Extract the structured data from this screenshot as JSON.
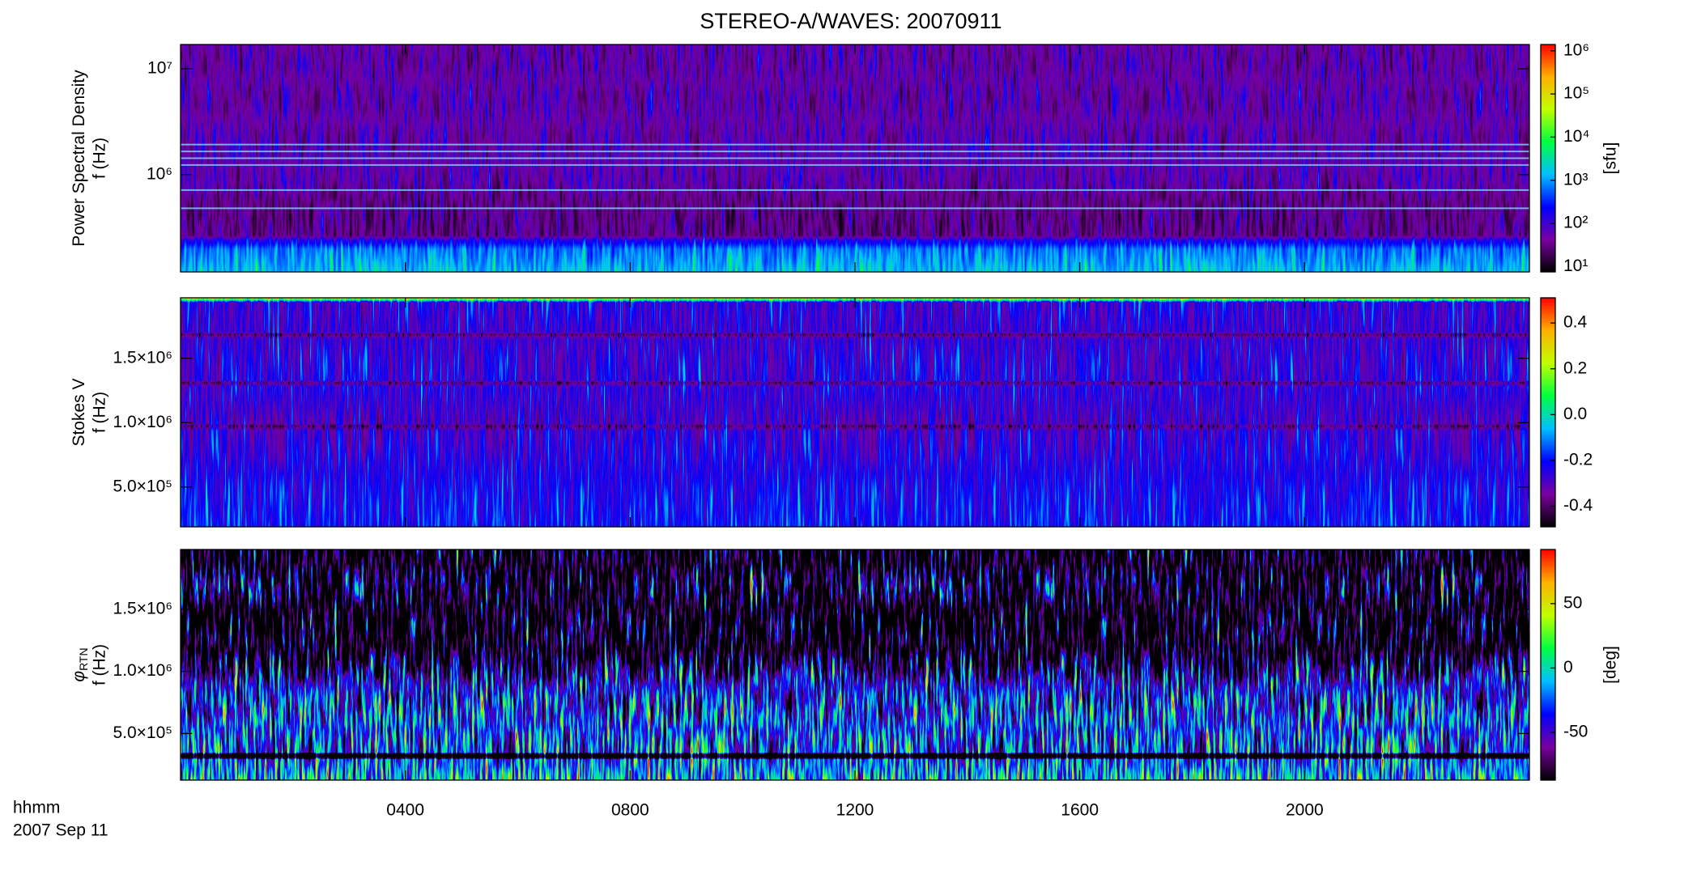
{
  "figure": {
    "title": "STEREO-A/WAVES: 20070911",
    "time_label": "hhmm",
    "date_label": "2007 Sep 11"
  },
  "chart_data": [
    {
      "type": "heatmap",
      "ylabel": "Power Spectral Density",
      "ylabel2": "f (Hz)",
      "ylog": true,
      "xlim": [
        0,
        24
      ],
      "xticks": [
        4,
        8,
        12,
        16,
        20
      ],
      "ylim": [
        120000,
        17000000
      ],
      "yticks": [
        {
          "value": 1000000,
          "label": "10⁶"
        },
        {
          "value": 10000000,
          "label": "10⁷"
        }
      ],
      "colormap": [
        "#000000",
        "#7a00a0",
        "#0000ff",
        "#00c0ff",
        "#00ff40",
        "#c0ff00",
        "#ffb000",
        "#ff0000"
      ],
      "colorbar": {
        "log": true,
        "clim": [
          7.5,
          1400000
        ],
        "label": "[sfu]",
        "ticks": [
          {
            "value": 10,
            "label": "10¹"
          },
          {
            "value": 100,
            "label": "10²"
          },
          {
            "value": 1000,
            "label": "10³"
          },
          {
            "value": 10000,
            "label": "10⁴"
          },
          {
            "value": 100000,
            "label": "10⁵"
          },
          {
            "value": 1000000,
            "label": "10⁶"
          }
        ]
      }
    },
    {
      "type": "heatmap",
      "ylabel": "Stokes V",
      "ylabel2": "f (Hz)",
      "ylog": false,
      "xlim": [
        0,
        24
      ],
      "xticks": [
        4,
        8,
        12,
        16,
        20
      ],
      "ylim": [
        190000,
        1970000
      ],
      "yticks": [
        {
          "value": 500000,
          "label": "5.0×10⁵"
        },
        {
          "value": 1000000,
          "label": "1.0×10⁶"
        },
        {
          "value": 1500000,
          "label": "1.5×10⁶"
        }
      ],
      "colormap": [
        "#000000",
        "#7a00a0",
        "#0000ff",
        "#00c0ff",
        "#00ff40",
        "#c0ff00",
        "#ffb000",
        "#ff0000"
      ],
      "colorbar": {
        "log": false,
        "clim": [
          -0.49,
          0.51
        ],
        "ticks": [
          -0.4,
          -0.2,
          {
            "value": 0,
            "label": "0.0"
          },
          0.2,
          0.4
        ]
      }
    },
    {
      "type": "heatmap",
      "ylabel": "φ",
      "ylabel_sub": "RTN",
      "ylabel2": "f (Hz)",
      "ylog": false,
      "xlim": [
        0,
        24
      ],
      "xticks": [
        {
          "value": 4,
          "label": "0400"
        },
        {
          "value": 8,
          "label": "0800"
        },
        {
          "value": 12,
          "label": "1200"
        },
        {
          "value": 16,
          "label": "1600"
        },
        {
          "value": 20,
          "label": "2000"
        }
      ],
      "ylim": [
        125000,
        1980000
      ],
      "yticks": [
        {
          "value": 500000,
          "label": "5.0×10⁵"
        },
        {
          "value": 1000000,
          "label": "1.0×10⁶"
        },
        {
          "value": 1500000,
          "label": "1.5×10⁶"
        }
      ],
      "colormap": [
        "#000000",
        "#7a00a0",
        "#0000ff",
        "#00c0ff",
        "#00ff40",
        "#c0ff00",
        "#ffb000",
        "#ff0000"
      ],
      "colorbar": {
        "log": false,
        "clim": [
          -87,
          92
        ],
        "label": "[deg]",
        "ticks": [
          -50,
          0,
          50
        ]
      }
    }
  ]
}
